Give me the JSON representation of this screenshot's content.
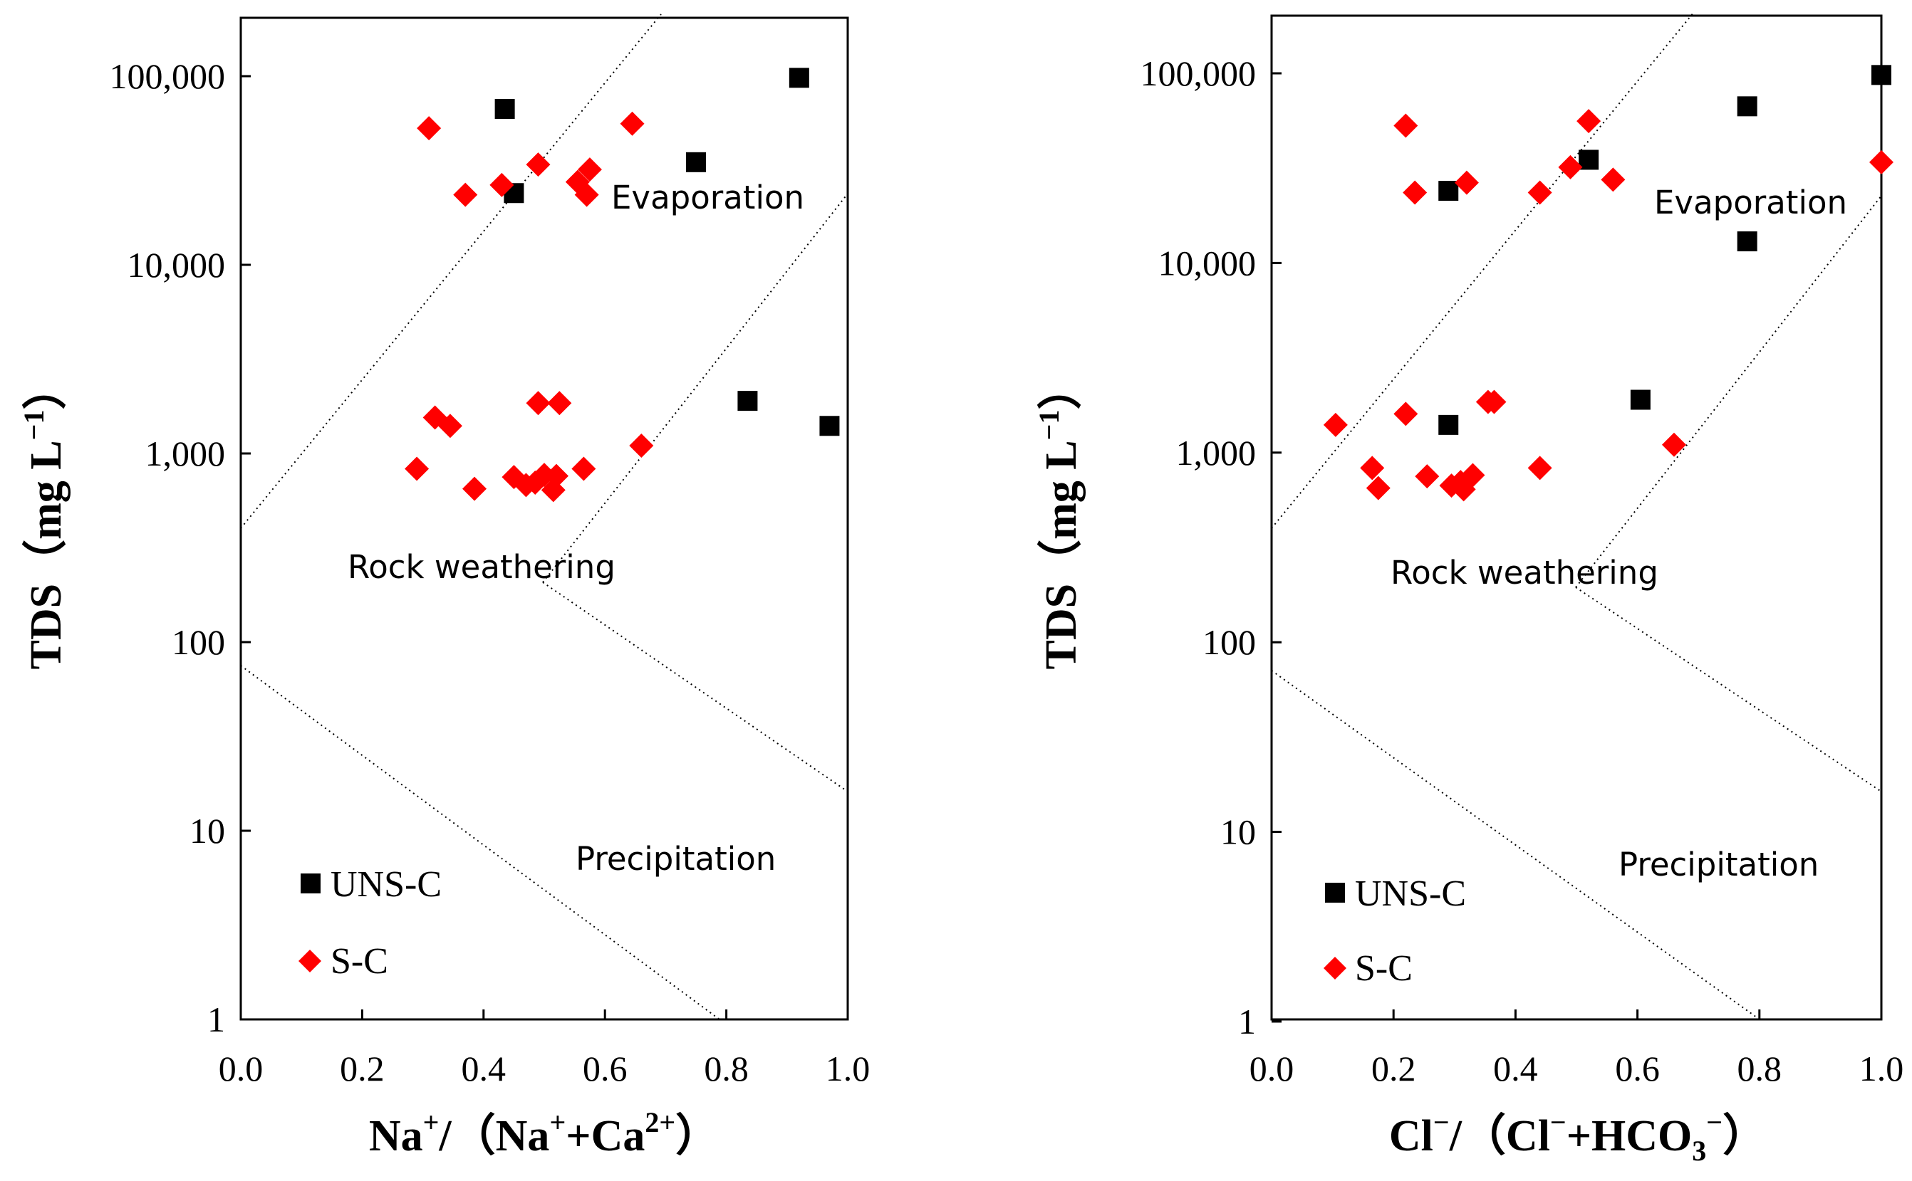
{
  "colors": {
    "uns_c": "#000000",
    "s_c": "#ff0000"
  },
  "chart_data": [
    {
      "type": "scatter",
      "panel": "left",
      "ylabel": "TDS（mg L",
      "ylabel_sup": "−1",
      "ylabel_close": "）",
      "xlabel": {
        "p1": "Na",
        "p1_sup": "+",
        "p2": "/（Na",
        "p2_sup": "+",
        "p3": "+Ca",
        "p3_sup": "2+",
        "p4": "）"
      },
      "xlim": [
        0,
        1
      ],
      "ylim": [
        1,
        200000
      ],
      "yscale": "log",
      "x_ticks": [
        0,
        0.2,
        0.4,
        0.6,
        0.8,
        1.0
      ],
      "x_tick_labels": [
        "0.0",
        "0.2",
        "0.4",
        "0.6",
        "0.8",
        "1.0"
      ],
      "y_ticks": [
        1,
        10,
        100,
        1000,
        10000,
        100000
      ],
      "y_tick_labels": [
        "1",
        "10",
        "100",
        "1,000",
        "10,000",
        "100,000"
      ],
      "regions": {
        "evaporation": "Evaporation",
        "rock_weathering": "Rock weathering",
        "precipitation": "Precipitation"
      },
      "legend": [
        "UNS-C",
        "S-C"
      ],
      "series": [
        {
          "name": "UNS-C",
          "marker": "square",
          "points": [
            [
              0.435,
              67000
            ],
            [
              0.45,
              24000
            ],
            [
              0.75,
              35000
            ],
            [
              0.92,
              98000
            ],
            [
              0.835,
              1900
            ],
            [
              0.97,
              1400
            ]
          ]
        },
        {
          "name": "S-C",
          "marker": "diamond",
          "points": [
            [
              0.31,
              53000
            ],
            [
              0.37,
              23500
            ],
            [
              0.43,
              26500
            ],
            [
              0.49,
              34000
            ],
            [
              0.555,
              27500
            ],
            [
              0.57,
              23500
            ],
            [
              0.575,
              32000
            ],
            [
              0.645,
              56000
            ],
            [
              0.32,
              1550
            ],
            [
              0.345,
              1400
            ],
            [
              0.29,
              830
            ],
            [
              0.385,
              650
            ],
            [
              0.49,
              1850
            ],
            [
              0.525,
              1850
            ],
            [
              0.45,
              750
            ],
            [
              0.47,
              680
            ],
            [
              0.485,
              700
            ],
            [
              0.5,
              770
            ],
            [
              0.515,
              640
            ],
            [
              0.52,
              760
            ],
            [
              0.565,
              830
            ],
            [
              0.66,
              1100
            ]
          ]
        }
      ]
    },
    {
      "type": "scatter",
      "panel": "right",
      "ylabel": "TDS（mg L",
      "ylabel_sup": "−1",
      "ylabel_close": "）",
      "xlabel": {
        "p1": "Cl",
        "p1_sup": "−",
        "p2": "/（Cl",
        "p2_sup": "−",
        "p3": "+HCO",
        "p3_sub": "3",
        "p3_sup": "−",
        "p4": "）"
      },
      "xlim": [
        0,
        1
      ],
      "ylim": [
        1,
        200000
      ],
      "yscale": "log",
      "x_ticks": [
        0,
        0.2,
        0.4,
        0.6,
        0.8,
        1.0
      ],
      "x_tick_labels": [
        "0.0",
        "0.2",
        "0.4",
        "0.6",
        "0.8",
        "1.0"
      ],
      "y_ticks": [
        1,
        10,
        100,
        1000,
        10000,
        100000
      ],
      "y_tick_labels": [
        "1",
        "10",
        "100",
        "1,000",
        "10,000",
        "100,000"
      ],
      "regions": {
        "evaporation": "Evaporation",
        "rock_weathering": "Rock weathering",
        "precipitation": "Precipitation"
      },
      "legend": [
        "UNS-C",
        "S-C"
      ],
      "series": [
        {
          "name": "UNS-C",
          "marker": "square",
          "points": [
            [
              0.29,
              24000
            ],
            [
              0.52,
              35000
            ],
            [
              0.78,
              67000
            ],
            [
              1.0,
              98000
            ],
            [
              0.78,
              13000
            ],
            [
              0.605,
              1900
            ],
            [
              0.29,
              1400
            ]
          ]
        },
        {
          "name": "S-C",
          "marker": "diamond",
          "points": [
            [
              0.22,
              53000
            ],
            [
              0.235,
              23500
            ],
            [
              0.32,
              26500
            ],
            [
              0.44,
              23500
            ],
            [
              0.49,
              32000
            ],
            [
              0.52,
              56000
            ],
            [
              0.56,
              27500
            ],
            [
              1.0,
              34000
            ],
            [
              0.105,
              1400
            ],
            [
              0.22,
              1600
            ],
            [
              0.165,
              830
            ],
            [
              0.175,
              650
            ],
            [
              0.255,
              750
            ],
            [
              0.295,
              670
            ],
            [
              0.31,
              700
            ],
            [
              0.315,
              640
            ],
            [
              0.33,
              760
            ],
            [
              0.355,
              1850
            ],
            [
              0.365,
              1850
            ],
            [
              0.44,
              830
            ],
            [
              0.66,
              1100
            ]
          ]
        }
      ]
    }
  ]
}
